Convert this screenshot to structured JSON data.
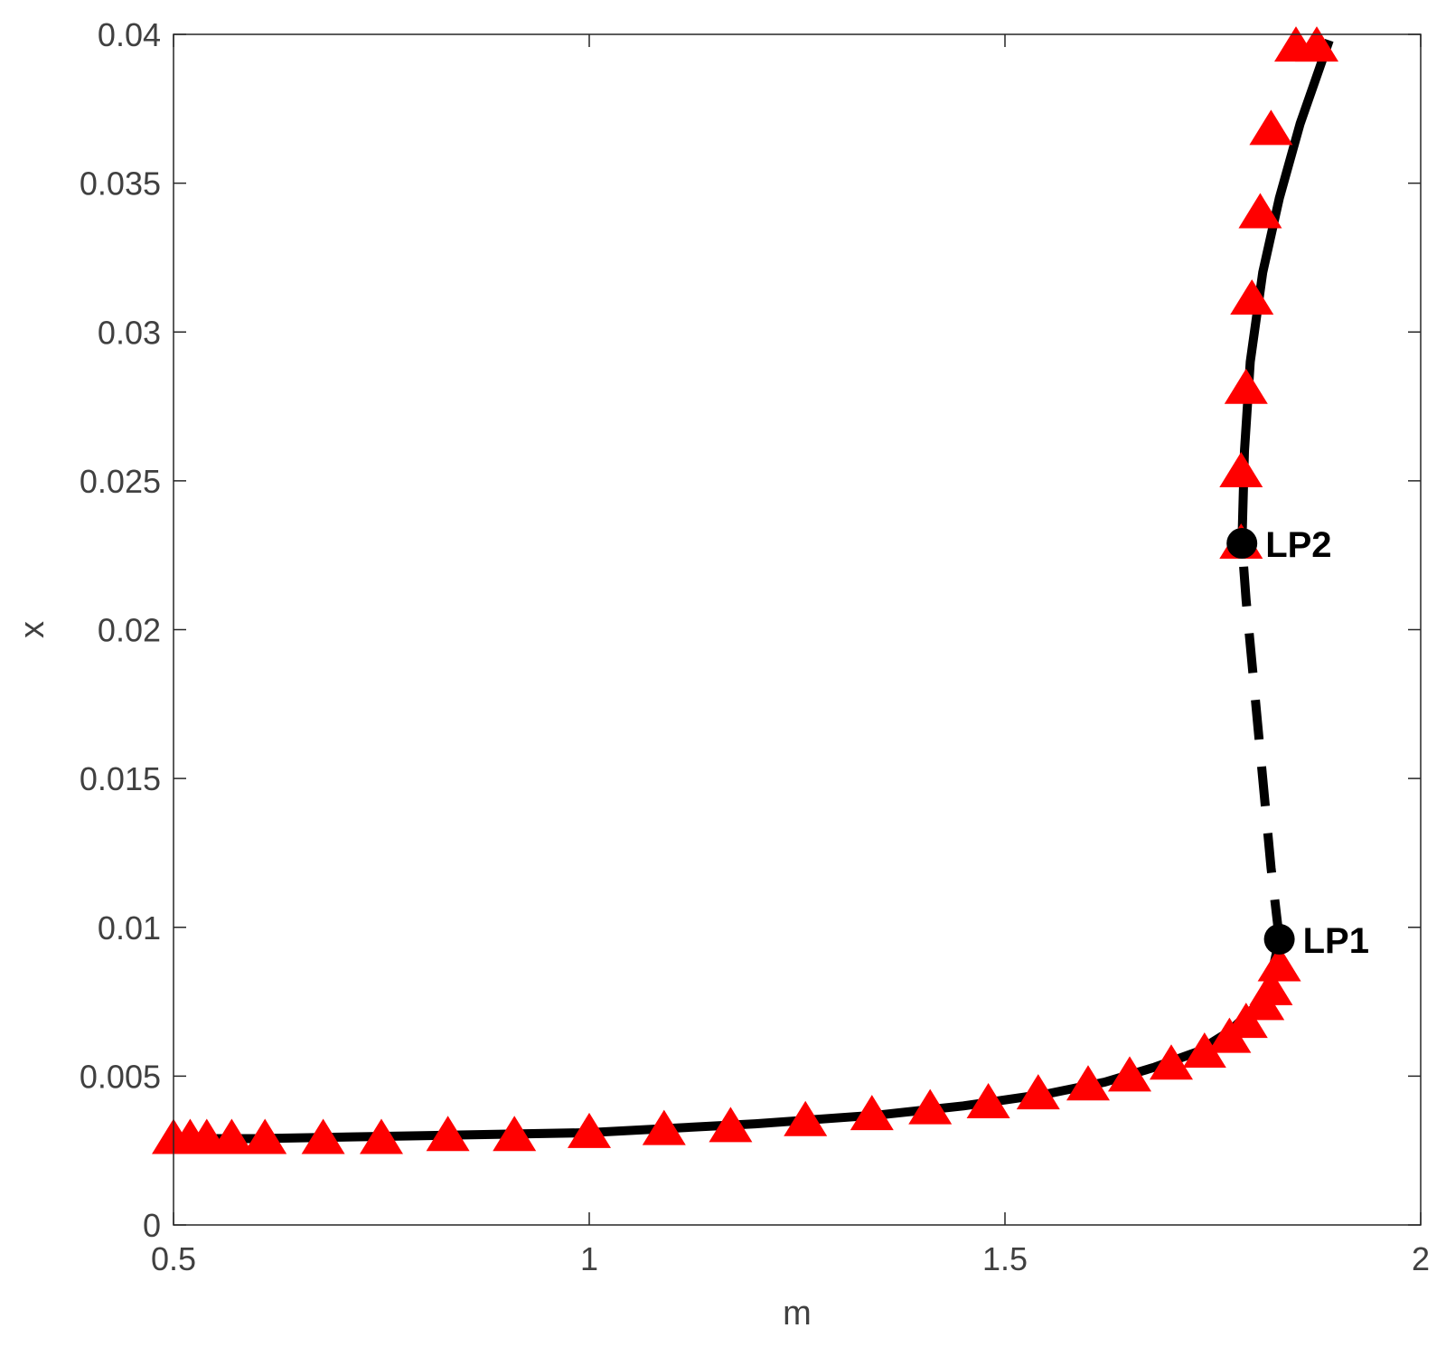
{
  "chart_data": {
    "type": "line",
    "title": "",
    "xlabel": "m",
    "ylabel": "x",
    "xlim": [
      0.5,
      2
    ],
    "ylim": [
      0,
      0.04
    ],
    "xticks": [
      0.5,
      1,
      1.5,
      2
    ],
    "yticks": [
      0,
      0.005,
      0.01,
      0.015,
      0.02,
      0.025,
      0.03,
      0.035,
      0.04
    ],
    "xtick_labels": [
      "0.5",
      "1",
      "1.5",
      "2"
    ],
    "ytick_labels": [
      "0",
      "0.005",
      "0.01",
      "0.015",
      "0.02",
      "0.025",
      "0.03",
      "0.035",
      "0.04"
    ],
    "grid": false,
    "series": [
      {
        "style": "solid",
        "color": "#000000",
        "x": [
          0.5,
          0.6,
          0.8,
          1.0,
          1.2,
          1.35,
          1.45,
          1.55,
          1.62,
          1.68,
          1.73,
          1.77,
          1.8,
          1.82,
          1.83
        ],
        "y": [
          0.0029,
          0.0029,
          0.003,
          0.0031,
          0.0034,
          0.0037,
          0.004,
          0.0044,
          0.0048,
          0.0053,
          0.0058,
          0.0065,
          0.0073,
          0.0083,
          0.0096
        ]
      },
      {
        "style": "dashed",
        "color": "#000000",
        "x": [
          1.83,
          1.82,
          1.81,
          1.8,
          1.79,
          1.785
        ],
        "y": [
          0.0096,
          0.012,
          0.015,
          0.018,
          0.021,
          0.0229
        ]
      },
      {
        "style": "solid",
        "color": "#000000",
        "x": [
          1.785,
          1.788,
          1.795,
          1.81,
          1.83,
          1.855,
          1.89
        ],
        "y": [
          0.0229,
          0.026,
          0.029,
          0.032,
          0.0345,
          0.037,
          0.0398
        ]
      }
    ],
    "markers": {
      "shape": "triangle",
      "color": "#ff0000",
      "x": [
        0.5,
        0.52,
        0.54,
        0.57,
        0.61,
        0.68,
        0.75,
        0.83,
        0.91,
        1.0,
        1.09,
        1.17,
        1.26,
        1.34,
        1.41,
        1.48,
        1.54,
        1.6,
        1.65,
        1.7,
        1.74,
        1.77,
        1.79,
        1.81,
        1.82,
        1.83,
        1.784,
        1.784,
        1.79,
        1.797,
        1.807,
        1.82,
        1.85,
        1.875
      ],
      "y": [
        0.0029,
        0.0029,
        0.0029,
        0.0029,
        0.0029,
        0.0029,
        0.0029,
        0.003,
        0.003,
        0.0031,
        0.0032,
        0.0033,
        0.0035,
        0.0037,
        0.0039,
        0.0041,
        0.0044,
        0.0047,
        0.005,
        0.0054,
        0.0058,
        0.0063,
        0.0068,
        0.0074,
        0.0079,
        0.0087,
        0.0229,
        0.0253,
        0.0281,
        0.0311,
        0.034,
        0.0368,
        0.0396,
        0.0396
      ]
    },
    "special_points": [
      {
        "label": "LP1",
        "x": 1.83,
        "y": 0.0096
      },
      {
        "label": "LP2",
        "x": 1.785,
        "y": 0.0229
      }
    ]
  }
}
